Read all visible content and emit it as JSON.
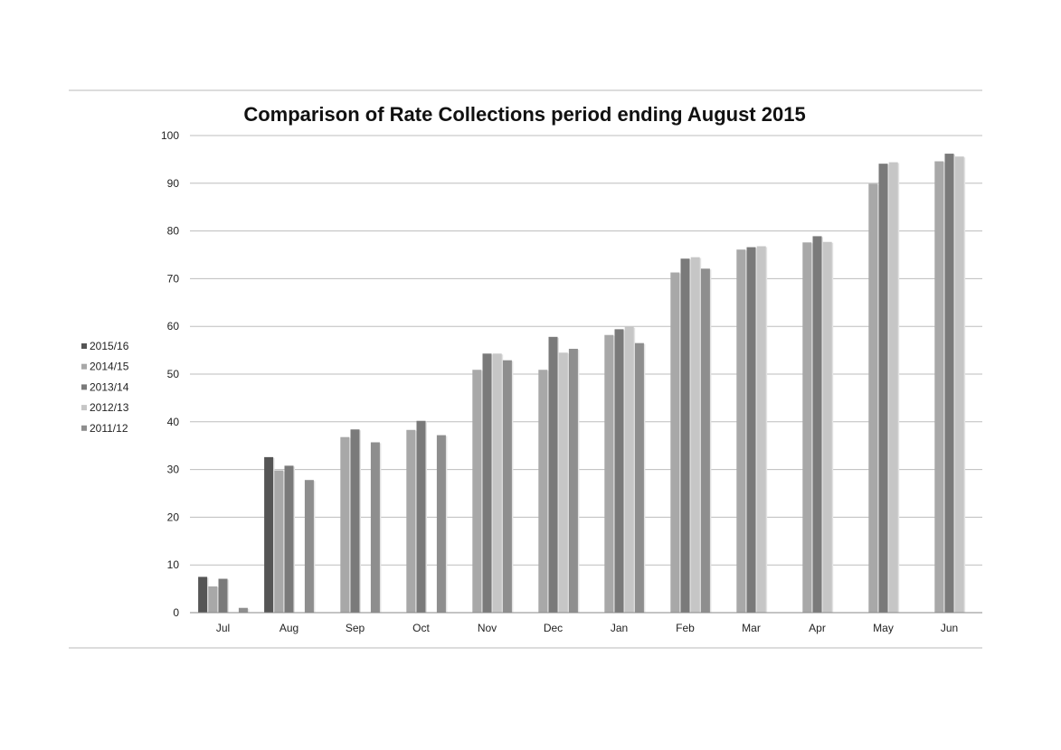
{
  "chart_data": {
    "type": "bar",
    "title": "Comparison of Rate Collections period ending August 2015",
    "xlabel": "",
    "ylabel": "",
    "ylim": [
      0,
      100
    ],
    "yticks": [
      0,
      10,
      20,
      30,
      40,
      50,
      60,
      70,
      80,
      90,
      100
    ],
    "grid": true,
    "legend_position": "left",
    "categories": [
      "Jul",
      "Aug",
      "Sep",
      "Oct",
      "Nov",
      "Dec",
      "Jan",
      "Feb",
      "Mar",
      "Apr",
      "May",
      "Jun"
    ],
    "series": [
      {
        "name": "2015/16",
        "color": "#555555",
        "values": [
          7.5,
          32.6,
          null,
          null,
          null,
          null,
          null,
          null,
          null,
          null,
          null,
          null
        ]
      },
      {
        "name": "2014/15",
        "color": "#a8a8a8",
        "values": [
          5.5,
          29.8,
          36.8,
          38.3,
          50.9,
          50.9,
          58.2,
          71.3,
          76.1,
          77.6,
          89.9,
          94.6
        ]
      },
      {
        "name": "2013/14",
        "color": "#7a7a7a",
        "values": [
          7.1,
          30.8,
          38.4,
          40.2,
          54.3,
          57.8,
          59.4,
          74.2,
          76.6,
          78.9,
          94.1,
          96.2
        ]
      },
      {
        "name": "2012/13",
        "color": "#c6c6c6",
        "values": [
          null,
          null,
          null,
          null,
          54.3,
          54.5,
          59.9,
          74.5,
          76.8,
          77.7,
          94.4,
          95.6
        ]
      },
      {
        "name": "2011/12",
        "color": "#8e8e8e",
        "values": [
          1.0,
          27.8,
          35.7,
          37.2,
          52.9,
          55.3,
          56.5,
          72.1,
          null,
          null,
          null,
          null
        ]
      }
    ]
  }
}
